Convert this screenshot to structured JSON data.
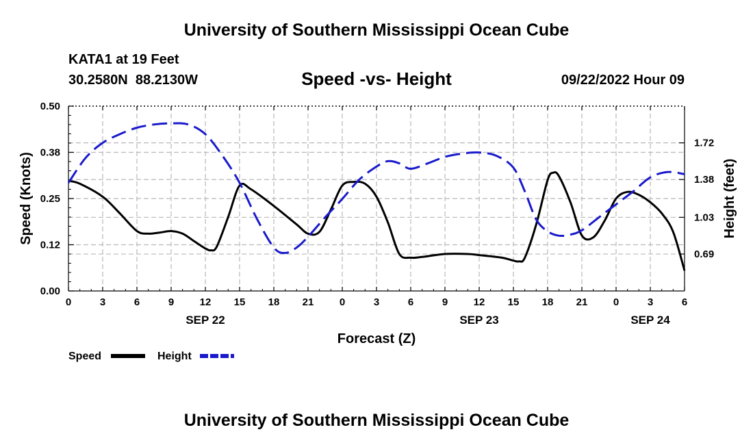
{
  "header": {
    "title": "University of Southern Mississippi Ocean Cube",
    "station": "KATA1 at 19 Feet",
    "coords": "30.2580N  88.2130W",
    "chart_title": "Speed -vs- Height",
    "datetime": "09/22/2022 Hour 09"
  },
  "footer": {
    "title": "University of Southern Mississippi Ocean Cube"
  },
  "chart_data": {
    "type": "line",
    "xlabel": "Forecast (Z)",
    "ylabel_left": "Speed (Knots)",
    "ylabel_right": "Height (feet)",
    "x_range": [
      0,
      54
    ],
    "x_ticks": [
      0,
      3,
      6,
      9,
      12,
      15,
      18,
      21,
      24,
      27,
      30,
      33,
      36,
      39,
      42,
      45,
      48,
      51,
      54
    ],
    "x_tick_labels": [
      "0",
      "3",
      "6",
      "9",
      "12",
      "15",
      "18",
      "21",
      "0",
      "3",
      "6",
      "9",
      "12",
      "15",
      "18",
      "21",
      "0",
      "3",
      "6"
    ],
    "date_labels": [
      {
        "x": 12,
        "label": "SEP 22"
      },
      {
        "x": 36,
        "label": "SEP 23"
      },
      {
        "x": 51,
        "label": "SEP 24"
      }
    ],
    "ylim_left": [
      0,
      0.5
    ],
    "y_ticks_left": [
      0,
      0.125,
      0.25,
      0.375,
      0.5
    ],
    "y_tick_labels_left": [
      "0.00",
      "0.12",
      "0.25",
      "0.38",
      "0.50"
    ],
    "ylim_right": [
      0.348,
      2.06
    ],
    "y_ticks_right": [
      0.69,
      1.03,
      1.38,
      1.72
    ],
    "y_tick_labels_right": [
      "0.69",
      "1.03",
      "1.38",
      "1.72"
    ],
    "legend": [
      "Speed",
      "Height"
    ],
    "series": [
      {
        "name": "Speed",
        "color": "#000000",
        "dash": "solid",
        "axis": "left",
        "x": [
          0,
          1,
          3,
          4.5,
          6,
          7,
          8,
          9,
          10,
          11,
          12,
          12.5,
          13,
          14,
          15,
          16,
          18,
          20,
          21,
          22,
          23,
          24,
          25,
          26,
          27,
          28,
          29,
          30,
          31,
          33,
          35,
          36,
          38,
          39,
          39.5,
          40,
          41,
          42,
          42.5,
          43,
          44,
          45,
          46,
          47,
          48,
          49,
          50,
          51,
          52,
          53,
          54
        ],
        "values": [
          0.298,
          0.29,
          0.255,
          0.21,
          0.162,
          0.155,
          0.158,
          0.162,
          0.155,
          0.135,
          0.115,
          0.11,
          0.12,
          0.2,
          0.285,
          0.275,
          0.23,
          0.18,
          0.155,
          0.16,
          0.22,
          0.285,
          0.295,
          0.29,
          0.255,
          0.185,
          0.1,
          0.09,
          0.092,
          0.1,
          0.1,
          0.097,
          0.09,
          0.082,
          0.08,
          0.09,
          0.18,
          0.3,
          0.32,
          0.31,
          0.24,
          0.15,
          0.145,
          0.19,
          0.25,
          0.268,
          0.26,
          0.24,
          0.21,
          0.16,
          0.055
        ]
      },
      {
        "name": "Height",
        "color": "#1a1acc",
        "dash": "dashed",
        "axis": "right",
        "x": [
          0,
          1.5,
          3,
          4.5,
          6,
          7.5,
          9,
          10.5,
          12,
          13.5,
          15,
          16.5,
          18,
          19,
          20,
          21,
          22.5,
          24,
          25.5,
          27,
          28,
          29,
          30,
          31.5,
          33,
          34.5,
          36,
          37.5,
          39,
          40,
          41,
          42,
          43,
          44,
          45,
          46.5,
          48,
          49.5,
          51,
          52.5,
          54
        ],
        "values": [
          1.35,
          1.58,
          1.72,
          1.8,
          1.86,
          1.89,
          1.9,
          1.89,
          1.8,
          1.6,
          1.35,
          1.02,
          0.75,
          0.7,
          0.75,
          0.85,
          1.03,
          1.2,
          1.38,
          1.5,
          1.55,
          1.53,
          1.48,
          1.53,
          1.59,
          1.62,
          1.63,
          1.6,
          1.49,
          1.27,
          1.01,
          0.9,
          0.86,
          0.87,
          0.91,
          1.03,
          1.15,
          1.27,
          1.4,
          1.45,
          1.43
        ]
      }
    ]
  }
}
